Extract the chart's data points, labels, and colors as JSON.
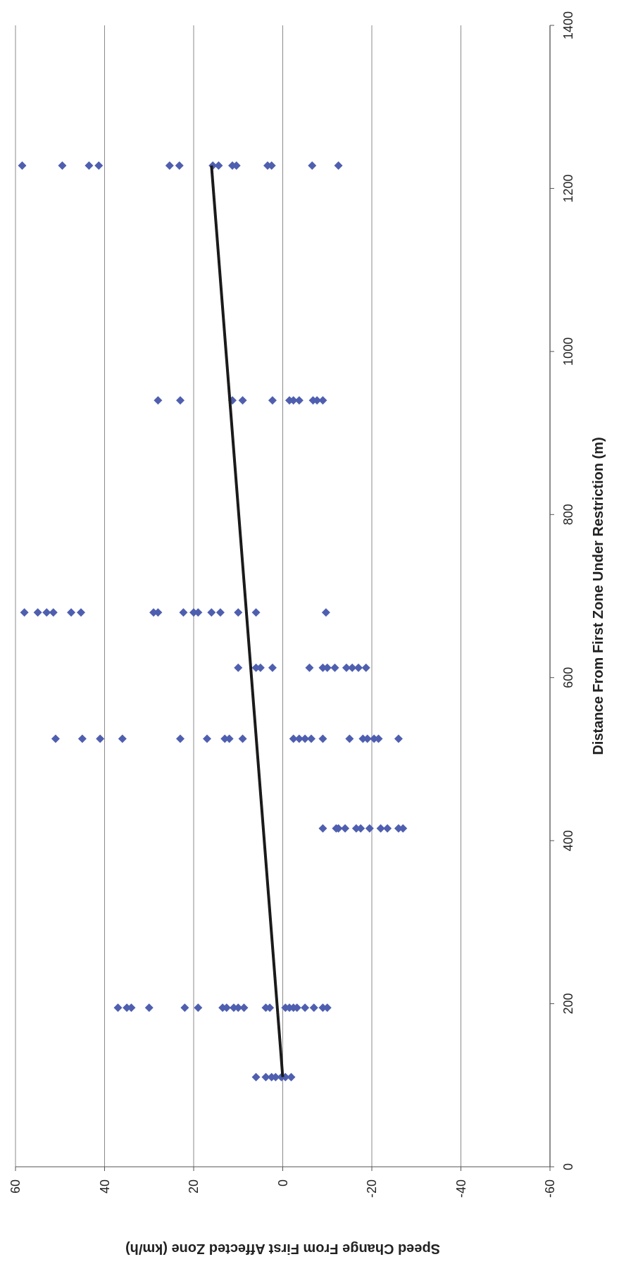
{
  "chart_data": {
    "type": "scatter",
    "xlabel": "Speed Change From First Affected Zone (km/h)",
    "ylabel": "Distance From First Zone Under Restriction (m)",
    "xlim": [
      60,
      -60
    ],
    "xticks": [
      60,
      40,
      20,
      0,
      -20,
      -40,
      -60
    ],
    "ylim": [
      0,
      1400
    ],
    "yticks": [
      0,
      200,
      400,
      600,
      800,
      1000,
      1200,
      1400
    ],
    "grid": "x",
    "series": [
      {
        "color": "#4f5fb0",
        "marker": "diamond",
        "values": [
          110,
          110,
          110,
          110,
          110,
          110,
          110,
          195,
          195,
          195,
          195,
          195,
          195,
          195,
          195,
          195,
          195,
          195,
          195,
          195,
          195,
          195,
          195,
          195,
          195,
          195,
          195,
          195,
          415,
          415,
          415,
          415,
          415,
          415,
          415,
          415,
          415,
          415,
          415,
          525,
          525,
          525,
          525,
          525,
          525,
          525,
          525,
          525,
          525,
          525,
          525,
          525,
          525,
          525,
          525,
          525,
          525,
          525,
          525,
          612,
          612,
          612,
          612,
          612,
          612,
          612,
          612,
          612,
          612,
          612,
          612,
          680,
          680,
          680,
          680,
          680,
          680,
          680,
          680,
          680,
          680,
          680,
          680,
          680,
          680,
          680,
          680,
          940,
          940,
          940,
          940,
          940,
          940,
          940,
          940,
          940,
          940,
          940,
          1228,
          1228,
          1228,
          1228,
          1228,
          1228,
          1228,
          1228,
          1228,
          1228,
          1228,
          1228,
          1228,
          1228
        ],
        "x": [
          6,
          3.8,
          2.5,
          1.6,
          0.3,
          -0.6,
          -1.9,
          37,
          35,
          34,
          30,
          22,
          19,
          13.5,
          12.6,
          11,
          10,
          8.7,
          3.8,
          2.9,
          -0.6,
          -1.5,
          -2.4,
          -3.2,
          -5,
          -7,
          -9,
          -10,
          -9,
          -12,
          -12.5,
          -14,
          -16.5,
          -17.5,
          -19.5,
          -22,
          -23.5,
          -26,
          -27,
          51,
          45,
          41,
          36,
          23,
          17,
          13,
          12,
          9,
          -2.4,
          -3.7,
          -5,
          -6.4,
          -9,
          -15,
          -18,
          -19,
          -20.5,
          -21.5,
          -26,
          10,
          6,
          5,
          2.3,
          -6,
          -9,
          -10,
          -11.7,
          -14.3,
          -15.6,
          -17,
          -18.7,
          58,
          55,
          53,
          51.5,
          47.5,
          45.3,
          29,
          28,
          22.3,
          20,
          19,
          16,
          14,
          10,
          6,
          -9.7,
          28,
          23,
          11.3,
          9,
          2.3,
          -1.5,
          -2.4,
          -3.7,
          -6.8,
          -7.7,
          -9,
          58.5,
          49.5,
          43.5,
          41.3,
          25.4,
          23.2,
          15.7,
          14.4,
          11.3,
          10.4,
          3.4,
          2.5,
          -6.6,
          -12.5
        ]
      },
      {
        "type": "line",
        "color": "#1a1a1a",
        "marker": "none",
        "line_style": "solid",
        "x": [
          0,
          16
        ],
        "values": [
          110,
          1228
        ]
      }
    ]
  }
}
